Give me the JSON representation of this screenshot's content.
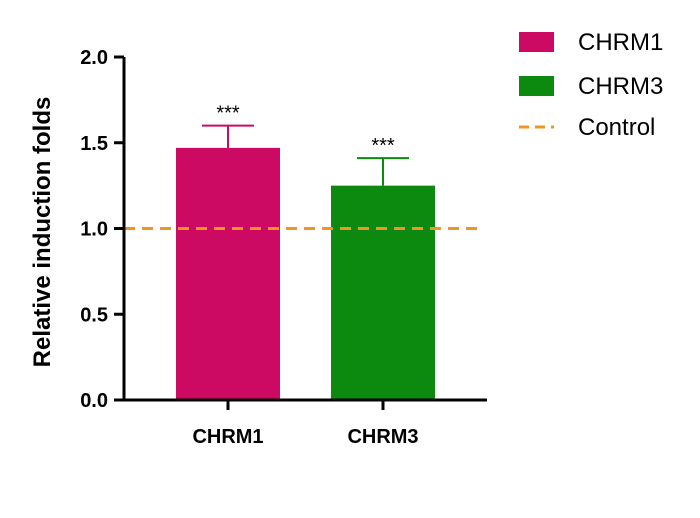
{
  "chart_data": {
    "type": "bar",
    "categories": [
      "CHRM1",
      "CHRM3"
    ],
    "values": [
      1.47,
      1.25
    ],
    "errors": [
      0.13,
      0.16
    ],
    "significance": [
      "***",
      "***"
    ],
    "colors": [
      "#CC0A63",
      "#0C8A10"
    ],
    "ylabel": "Relative induction folds",
    "xlabel": "",
    "ylim": [
      0,
      2.0
    ],
    "yticks": [
      "0.0",
      "0.5",
      "1.0",
      "1.5",
      "2.0"
    ],
    "reference_line": {
      "value": 1.0,
      "label": "Control",
      "color": "#F39320",
      "style": "dashed"
    },
    "legend": [
      {
        "label": "CHRM1",
        "color": "#CC0A63",
        "kind": "box"
      },
      {
        "label": "CHRM3",
        "color": "#0C8A10",
        "kind": "box"
      },
      {
        "label": "Control",
        "color": "#F39320",
        "kind": "dashed-line"
      }
    ],
    "legend_position": "top-right",
    "grid": false
  }
}
